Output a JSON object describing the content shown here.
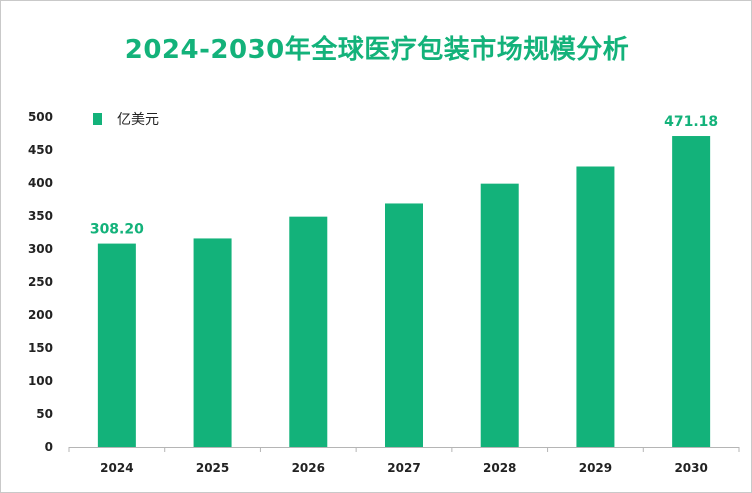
{
  "colors": {
    "accent": "#13b27a",
    "bar": "#13b27a",
    "axis": "#b5b5b5",
    "text": "#222222"
  },
  "chart_data": {
    "type": "bar",
    "title": "2024-2030年全球医疗包装市场规模分析",
    "xlabel": "",
    "ylabel": "",
    "categories": [
      "2024",
      "2025",
      "2026",
      "2027",
      "2028",
      "2029",
      "2030"
    ],
    "series": [
      {
        "name": "亿美元",
        "values": [
          308.2,
          316,
          349,
          369,
          399,
          425,
          471.18
        ]
      }
    ],
    "data_labels": {
      "2024": "308.20",
      "2030": "471.18"
    },
    "ylim": [
      0,
      500
    ],
    "yticks": [
      0,
      50,
      100,
      150,
      200,
      250,
      300,
      350,
      400,
      450,
      500
    ],
    "grid": false,
    "legend": "top-left"
  }
}
